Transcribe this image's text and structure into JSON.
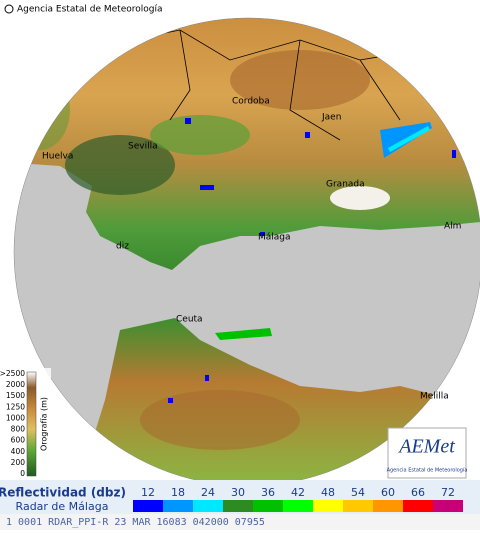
{
  "header": {
    "agency": "Agencia Estatal de Meteorología"
  },
  "cities": [
    "Cordoba",
    "Jaen",
    "Huelva",
    "Sevilla",
    "Granada",
    "Málaga",
    "Alm",
    "diz",
    "Ceuta",
    "Melilla"
  ],
  "orography": {
    "title": "Orografía (m)",
    "levels": [
      ">2500",
      "2000",
      "1500",
      "1250",
      "1000",
      "800",
      "600",
      "400",
      "200",
      "0"
    ]
  },
  "logo": {
    "name": "AEMet",
    "subtitle": "Agencia Estatal de Meteorología"
  },
  "legend": {
    "title": "Reflectividad (dbz)",
    "subtitle": "Radar de Málaga",
    "levels": [
      {
        "value": 12,
        "color": "#0000fe"
      },
      {
        "value": 18,
        "color": "#0096ff"
      },
      {
        "value": 24,
        "color": "#00e8ff"
      },
      {
        "value": 30,
        "color": "#2e8b22"
      },
      {
        "value": 36,
        "color": "#00c000"
      },
      {
        "value": 42,
        "color": "#00ff00"
      },
      {
        "value": 48,
        "color": "#ffff00"
      },
      {
        "value": 54,
        "color": "#ffc800"
      },
      {
        "value": 60,
        "color": "#ff9600"
      },
      {
        "value": 66,
        "color": "#ff0000"
      },
      {
        "value": 72,
        "color": "#c80078"
      }
    ]
  },
  "status": "1 0001 RDAR_PPI-R 23 MAR 16083 042000 07955"
}
